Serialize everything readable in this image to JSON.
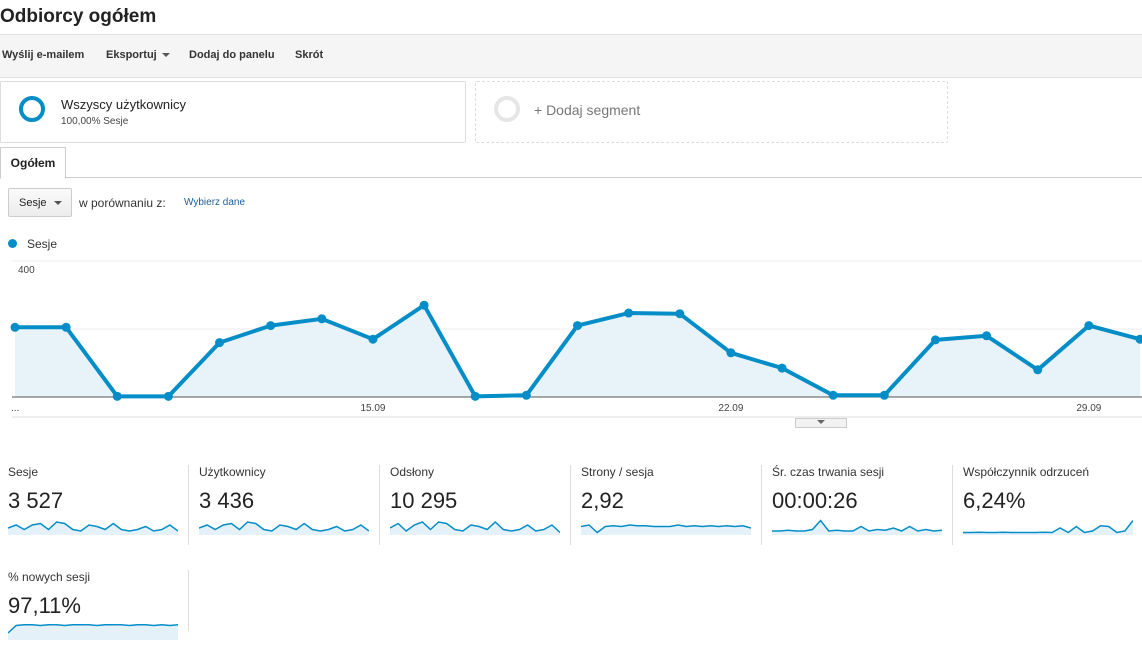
{
  "page": {
    "title": "Odbiorcy ogółem"
  },
  "toolbar": {
    "email": "Wyślij e-mailem",
    "export": "Eksportuj",
    "add_to_dashboard": "Dodaj do panelu",
    "shortcut": "Skrót"
  },
  "segments": {
    "active": {
      "name": "Wszyscy użytkownicy",
      "sub": "100,00% Sesje"
    },
    "add": "+ Dodaj segment"
  },
  "tab": {
    "label": "Ogółem"
  },
  "controls": {
    "metric_select": "Sesje",
    "compare_label": "w porównaniu z:",
    "choose_data": "Wybierz dane"
  },
  "legend": {
    "series": "Sesje"
  },
  "chart_data": {
    "type": "area",
    "series": [
      {
        "name": "Sesje",
        "values": [
          205,
          205,
          2,
          2,
          160,
          210,
          230,
          170,
          270,
          2,
          5,
          210,
          247,
          245,
          130,
          85,
          5,
          5,
          168,
          180,
          80,
          210,
          170
        ]
      }
    ],
    "y_ticks": [
      "400",
      "200"
    ],
    "ylim": [
      0,
      400
    ],
    "x_tick_labels": [
      "...",
      "15.09",
      "22.09",
      "29.09"
    ],
    "color": "#058dc7"
  },
  "metrics": [
    {
      "name": "Sesje",
      "value": "3 527",
      "spark": [
        0.4,
        0.6,
        0.3,
        0.6,
        0.7,
        0.3,
        0.8,
        0.7,
        0.3,
        0.2,
        0.6,
        0.5,
        0.3,
        0.7,
        0.3,
        0.2,
        0.3,
        0.5,
        0.2,
        0.3,
        0.6,
        0.2
      ]
    },
    {
      "name": "Użytkownicy",
      "value": "3 436",
      "spark": [
        0.4,
        0.6,
        0.3,
        0.6,
        0.7,
        0.3,
        0.8,
        0.7,
        0.3,
        0.2,
        0.6,
        0.5,
        0.3,
        0.7,
        0.3,
        0.2,
        0.3,
        0.5,
        0.2,
        0.3,
        0.6,
        0.2
      ]
    },
    {
      "name": "Odsłony",
      "value": "10 295",
      "spark": [
        0.4,
        0.7,
        0.2,
        0.6,
        0.8,
        0.3,
        0.8,
        0.7,
        0.3,
        0.2,
        0.6,
        0.5,
        0.3,
        0.8,
        0.3,
        0.2,
        0.3,
        0.6,
        0.2,
        0.3,
        0.6,
        0.1
      ]
    },
    {
      "name": "Strony / sesja",
      "value": "2,92",
      "spark": [
        0.5,
        0.6,
        0.1,
        0.5,
        0.55,
        0.5,
        0.6,
        0.55,
        0.55,
        0.5,
        0.5,
        0.5,
        0.6,
        0.5,
        0.55,
        0.5,
        0.55,
        0.5,
        0.55,
        0.5,
        0.55,
        0.4
      ]
    },
    {
      "name": "Śr. czas trwania sesji",
      "value": "00:00:26",
      "spark": [
        0.2,
        0.2,
        0.25,
        0.2,
        0.2,
        0.3,
        0.9,
        0.2,
        0.25,
        0.2,
        0.2,
        0.5,
        0.2,
        0.3,
        0.25,
        0.4,
        0.2,
        0.5,
        0.2,
        0.3,
        0.2,
        0.25
      ]
    },
    {
      "name": "Współczynnik odrzuceń",
      "value": "6,24%",
      "spark": [
        0.1,
        0.1,
        0.12,
        0.1,
        0.1,
        0.12,
        0.1,
        0.1,
        0.1,
        0.1,
        0.12,
        0.1,
        0.4,
        0.1,
        0.5,
        0.1,
        0.2,
        0.55,
        0.5,
        0.1,
        0.2,
        0.9
      ]
    },
    {
      "name": "% nowych sesji",
      "value": "97,11%",
      "spark": [
        0.4,
        0.9,
        0.95,
        0.95,
        0.9,
        0.95,
        0.95,
        0.9,
        0.95,
        0.95,
        0.95,
        0.9,
        0.95,
        0.95,
        0.95,
        0.9,
        0.95,
        0.95,
        0.9,
        0.95,
        0.9,
        0.95
      ]
    }
  ]
}
